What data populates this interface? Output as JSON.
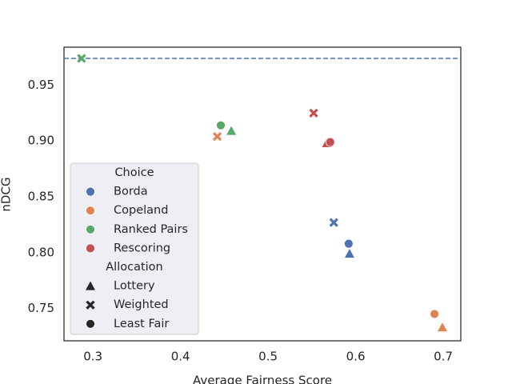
{
  "chart_data": {
    "type": "scatter",
    "x_label": "Average Fairness Score",
    "y_label": "nDCG",
    "xlim": [
      0.267,
      0.72
    ],
    "ylim": [
      0.721,
      0.984
    ],
    "xticks": [
      0.3,
      0.4,
      0.5,
      0.6,
      0.7
    ],
    "yticks": [
      0.75,
      {
        "value": 0.8,
        "label": "0.80"
      },
      0.85,
      {
        "value": 0.9,
        "label": "0.90"
      },
      0.95
    ],
    "hline": 0.974,
    "hline_color": "#4c72b0",
    "legend_corner": "lower left",
    "hue_title": "Choice",
    "style_title": "Allocation",
    "allocations": [
      "Lottery",
      "Weighted",
      "Least Fair"
    ],
    "markers": [
      "triangle",
      "cross",
      "circle"
    ],
    "series": [
      {
        "name": "Borda",
        "color": "#4c72b0",
        "x": [
          0.593,
          0.575,
          0.592
        ],
        "values": [
          0.799,
          0.827,
          0.808
        ]
      },
      {
        "name": "Copeland",
        "color": "#dd8452",
        "x": [
          0.699,
          0.442,
          0.69
        ],
        "values": [
          0.733,
          0.904,
          0.745
        ]
      },
      {
        "name": "Ranked Pairs",
        "color": "#55a868",
        "x": [
          0.458,
          0.287,
          0.446
        ],
        "values": [
          0.909,
          0.974,
          0.914
        ]
      },
      {
        "name": "Rescoring",
        "color": "#c44e52",
        "x": [
          0.567,
          0.552,
          0.571
        ],
        "values": [
          0.898,
          0.925,
          0.899
        ]
      }
    ]
  }
}
